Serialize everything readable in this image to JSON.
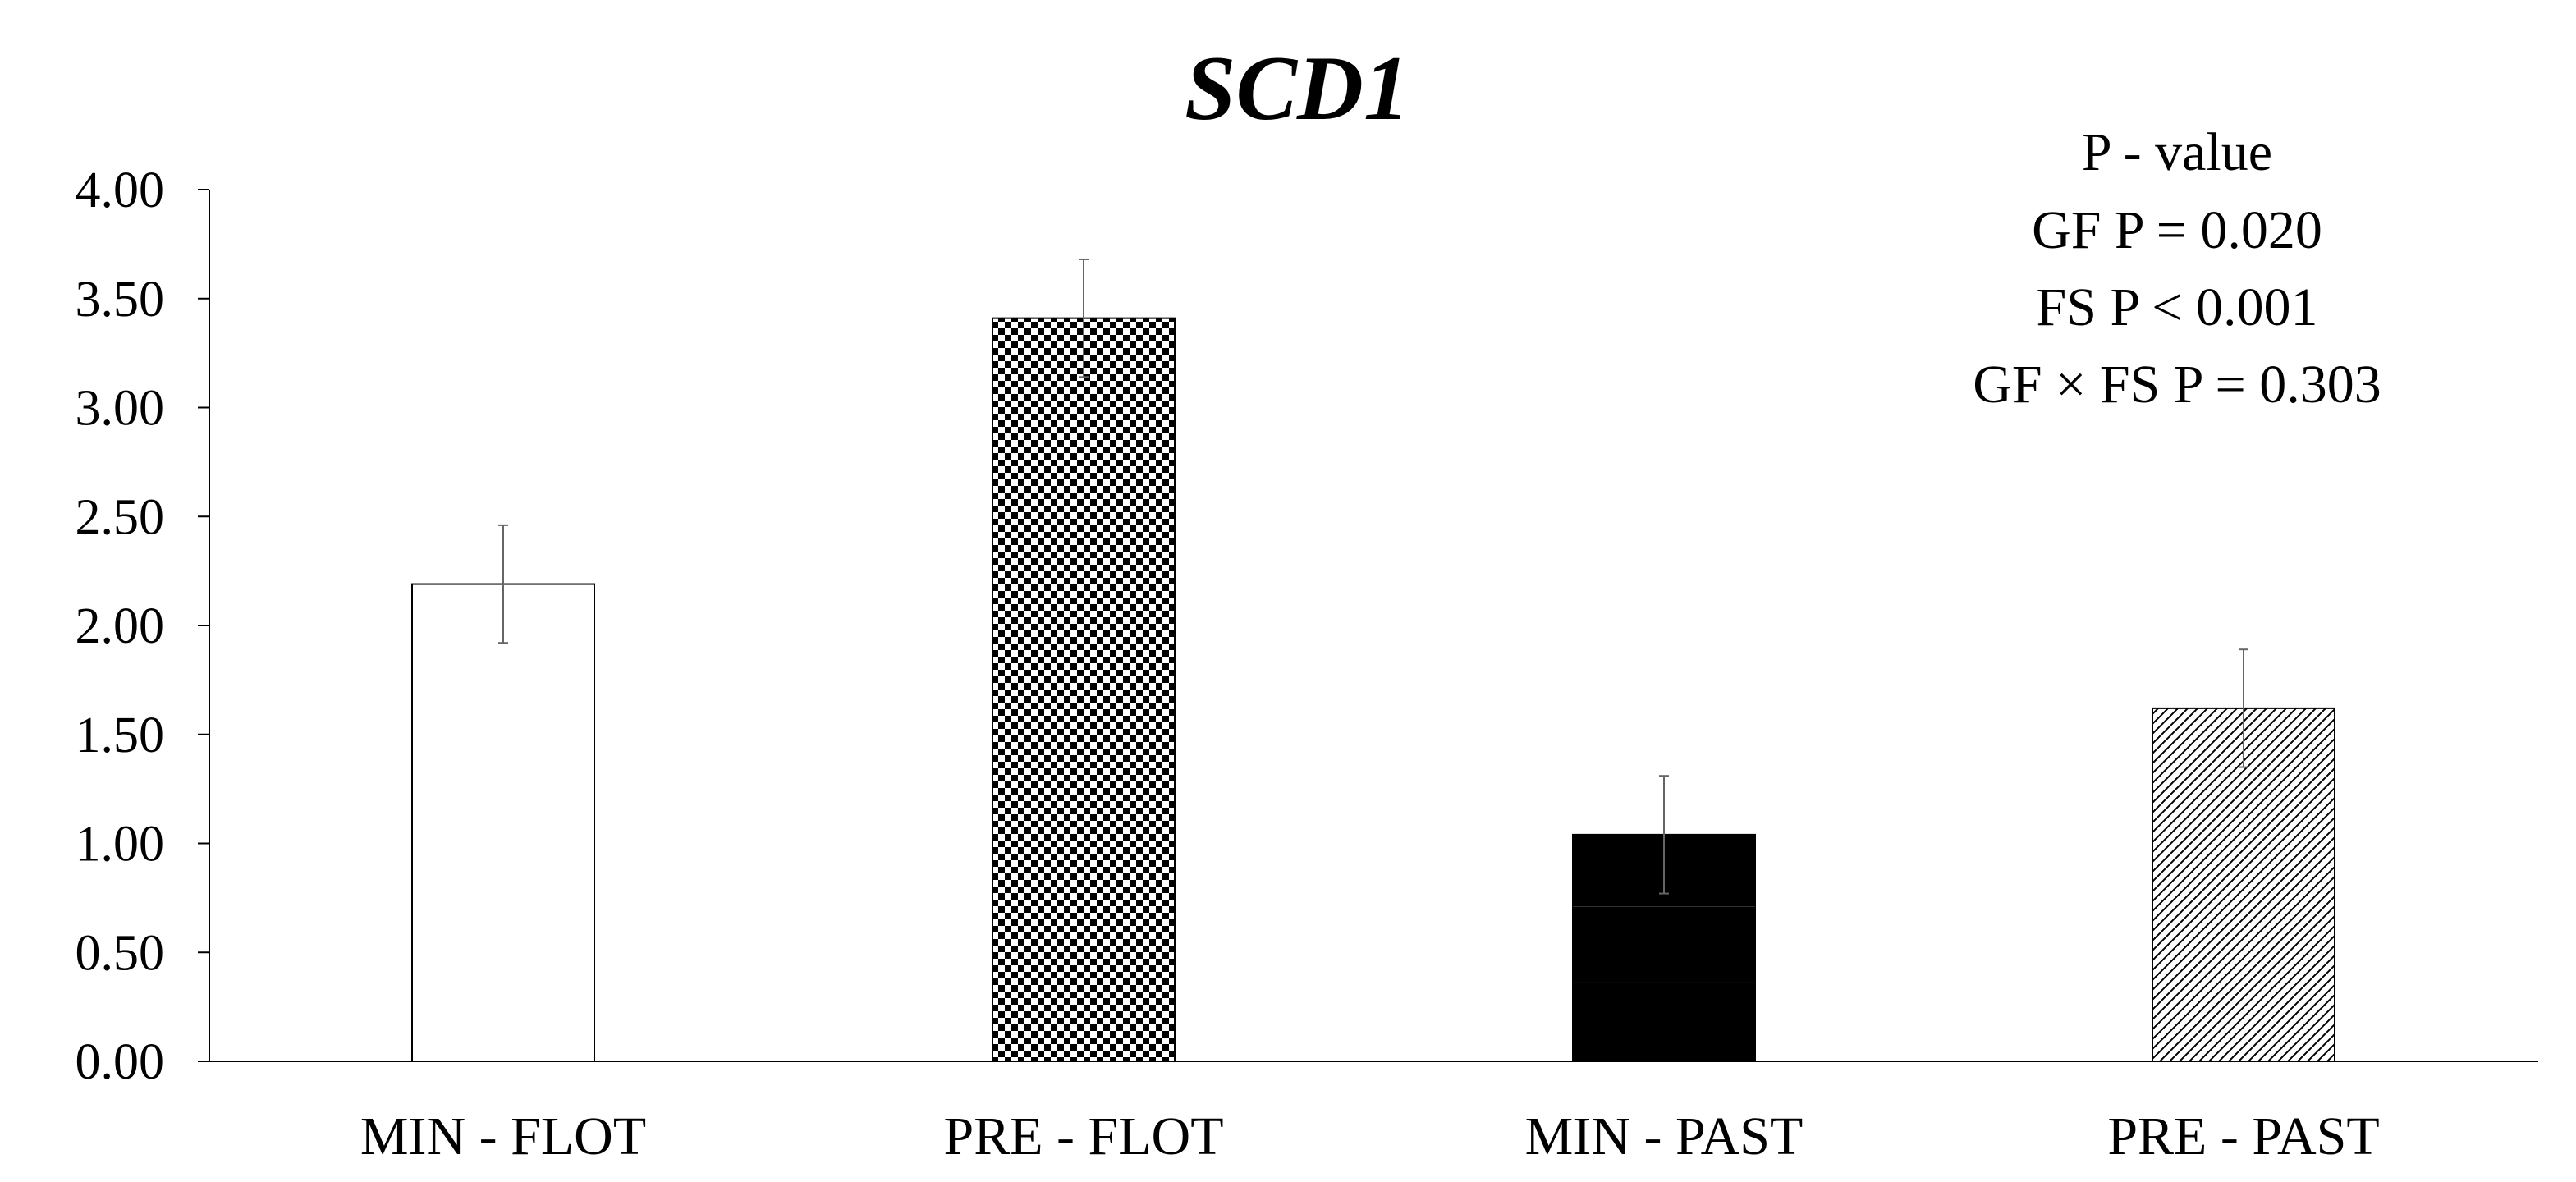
{
  "chart_data": {
    "type": "bar",
    "title": "SCD1",
    "xlabel": "",
    "ylabel": "",
    "ylim": [
      0,
      4
    ],
    "yticks": [
      "0.00",
      "0.50",
      "1.00",
      "1.50",
      "2.00",
      "2.50",
      "3.00",
      "3.50",
      "4.00"
    ],
    "categories": [
      "MIN - FLOT",
      "PRE - FLOT",
      "MIN - PAST",
      "PRE - PAST"
    ],
    "values": [
      2.19,
      3.41,
      1.04,
      1.62
    ],
    "error": [
      0.27,
      0.27,
      0.27,
      0.27
    ],
    "fills": [
      "white",
      "checkerboard",
      "black",
      "diagonal-hatch"
    ],
    "annotations": [
      "P - value",
      "GF P = 0.020",
      "FS P < 0.001",
      "GF × FS P = 0.303"
    ],
    "grid": false,
    "legend": "none"
  },
  "colors": {
    "axis": "#000000",
    "text": "#000000",
    "bar_border": "#000000",
    "error_bar": "#666666",
    "hatch": "#000000",
    "black_bar": "#000000",
    "faint_line": "#333333"
  }
}
